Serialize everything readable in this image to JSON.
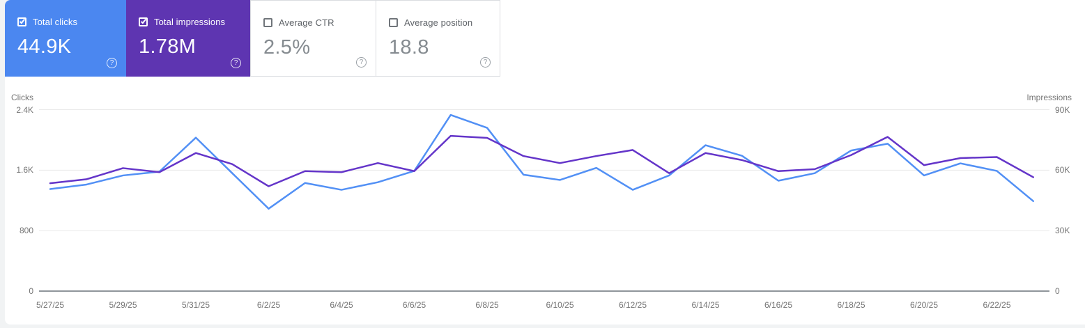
{
  "cards": [
    {
      "label": "Total clicks",
      "value": "44.9K",
      "checked": true,
      "bg": "#4b87f0",
      "fg": "#ffffff"
    },
    {
      "label": "Total impressions",
      "value": "1.78M",
      "checked": true,
      "bg": "#5e35b1",
      "fg": "#ffffff"
    },
    {
      "label": "Average CTR",
      "value": "2.5%",
      "checked": false,
      "bg": "#ffffff",
      "fg": "#858b90"
    },
    {
      "label": "Average position",
      "value": "18.8",
      "checked": false,
      "bg": "#ffffff",
      "fg": "#858b90"
    }
  ],
  "help_icon_glyph": "?",
  "chart": {
    "left_axis_title": "Clicks",
    "right_axis_title": "Impressions",
    "left_ticks": [
      "2.4K",
      "1.6K",
      "800",
      "0"
    ],
    "right_ticks": [
      "90K",
      "60K",
      "30K",
      "0"
    ],
    "date_labels": [
      "5/27/25",
      "5/29/25",
      "5/31/25",
      "6/2/25",
      "6/4/25",
      "6/6/25",
      "6/8/25",
      "6/10/25",
      "6/12/25",
      "6/14/25",
      "6/16/25",
      "6/18/25",
      "6/20/25",
      "6/22/25"
    ],
    "colors": {
      "clicks_line": "#5290f5",
      "impressions_line": "#6435c9",
      "gridline": "#e9e9e9",
      "axis_line": "#8f959b",
      "tick_text": "#757575"
    }
  },
  "chart_data": {
    "type": "line",
    "x": [
      "5/27/25",
      "5/28/25",
      "5/29/25",
      "5/30/25",
      "5/31/25",
      "6/1/25",
      "6/2/25",
      "6/3/25",
      "6/4/25",
      "6/5/25",
      "6/6/25",
      "6/7/25",
      "6/8/25",
      "6/9/25",
      "6/10/25",
      "6/11/25",
      "6/12/25",
      "6/13/25",
      "6/14/25",
      "6/15/25",
      "6/16/25",
      "6/17/25",
      "6/18/25",
      "6/19/25",
      "6/20/25",
      "6/21/25",
      "6/22/25",
      "6/23/25"
    ],
    "series": [
      {
        "name": "Total clicks",
        "axis": "left",
        "color": "#5290f5",
        "values": [
          1350,
          1410,
          1530,
          1580,
          2030,
          1560,
          1090,
          1430,
          1340,
          1440,
          1590,
          2330,
          2160,
          1540,
          1470,
          1630,
          1340,
          1530,
          1930,
          1790,
          1460,
          1560,
          1860,
          1950,
          1530,
          1690,
          1590,
          1190
        ]
      },
      {
        "name": "Total impressions",
        "axis": "right",
        "color": "#6435c9",
        "values": [
          53500,
          55500,
          61000,
          59000,
          68500,
          63000,
          52000,
          59500,
          59000,
          63500,
          59500,
          77000,
          76000,
          67000,
          63500,
          67000,
          70000,
          58500,
          68500,
          65000,
          59500,
          60500,
          67500,
          76500,
          62500,
          66000,
          66500,
          56500
        ]
      }
    ],
    "left_axis": {
      "title": "Clicks",
      "range": [
        0,
        2400
      ],
      "ticks": [
        0,
        800,
        1600,
        2400
      ]
    },
    "right_axis": {
      "title": "Impressions",
      "range": [
        0,
        90000
      ],
      "ticks": [
        0,
        30000,
        60000,
        90000
      ]
    },
    "x_tick_every": 2,
    "legend": "none",
    "grid": "horizontal"
  }
}
